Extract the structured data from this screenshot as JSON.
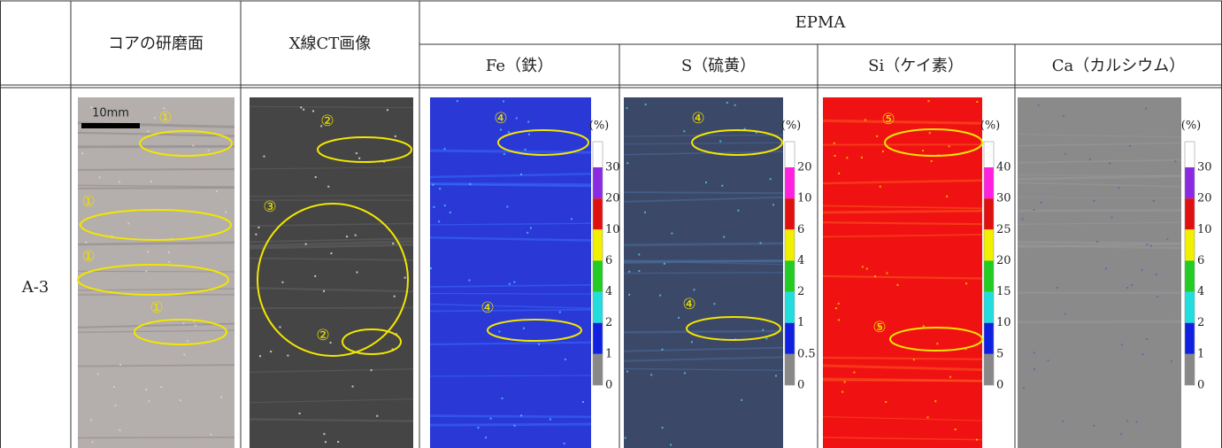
{
  "table": {
    "columns": [
      "コアの研磨面",
      "X線CT画像"
    ],
    "group": "EPMA",
    "subcolumns": [
      "Fe（鉄）",
      "S（硫黄）",
      "Si（ケイ素）",
      "Ca（カルシウム）"
    ],
    "rows": [
      {
        "label": "A-3",
        "core": {
          "scale_bar": "10mm",
          "annotations": [
            "①",
            "①",
            "①",
            "①"
          ]
        },
        "ct": {
          "annotations": [
            "②",
            "③",
            "②"
          ]
        },
        "maps": [
          {
            "unit": "(%)",
            "scale": [
              "30",
              "20",
              "10",
              "6",
              "4",
              "2",
              "1",
              "0"
            ],
            "annotations": [
              "④",
              "④"
            ]
          },
          {
            "unit": "(%)",
            "scale": [
              "20",
              "10",
              "6",
              "4",
              "2",
              "1",
              "0.5",
              "0"
            ],
            "annotations": [
              "④",
              "④"
            ]
          },
          {
            "unit": "(%)",
            "scale": [
              "40",
              "30",
              "25",
              "20",
              "15",
              "10",
              "5",
              "0"
            ],
            "annotations": [
              "⑤",
              "⑤"
            ]
          },
          {
            "unit": "(%)",
            "scale": [
              "30",
              "20",
              "10",
              "6",
              "4",
              "2",
              "1",
              "0"
            ]
          }
        ]
      }
    ]
  }
}
